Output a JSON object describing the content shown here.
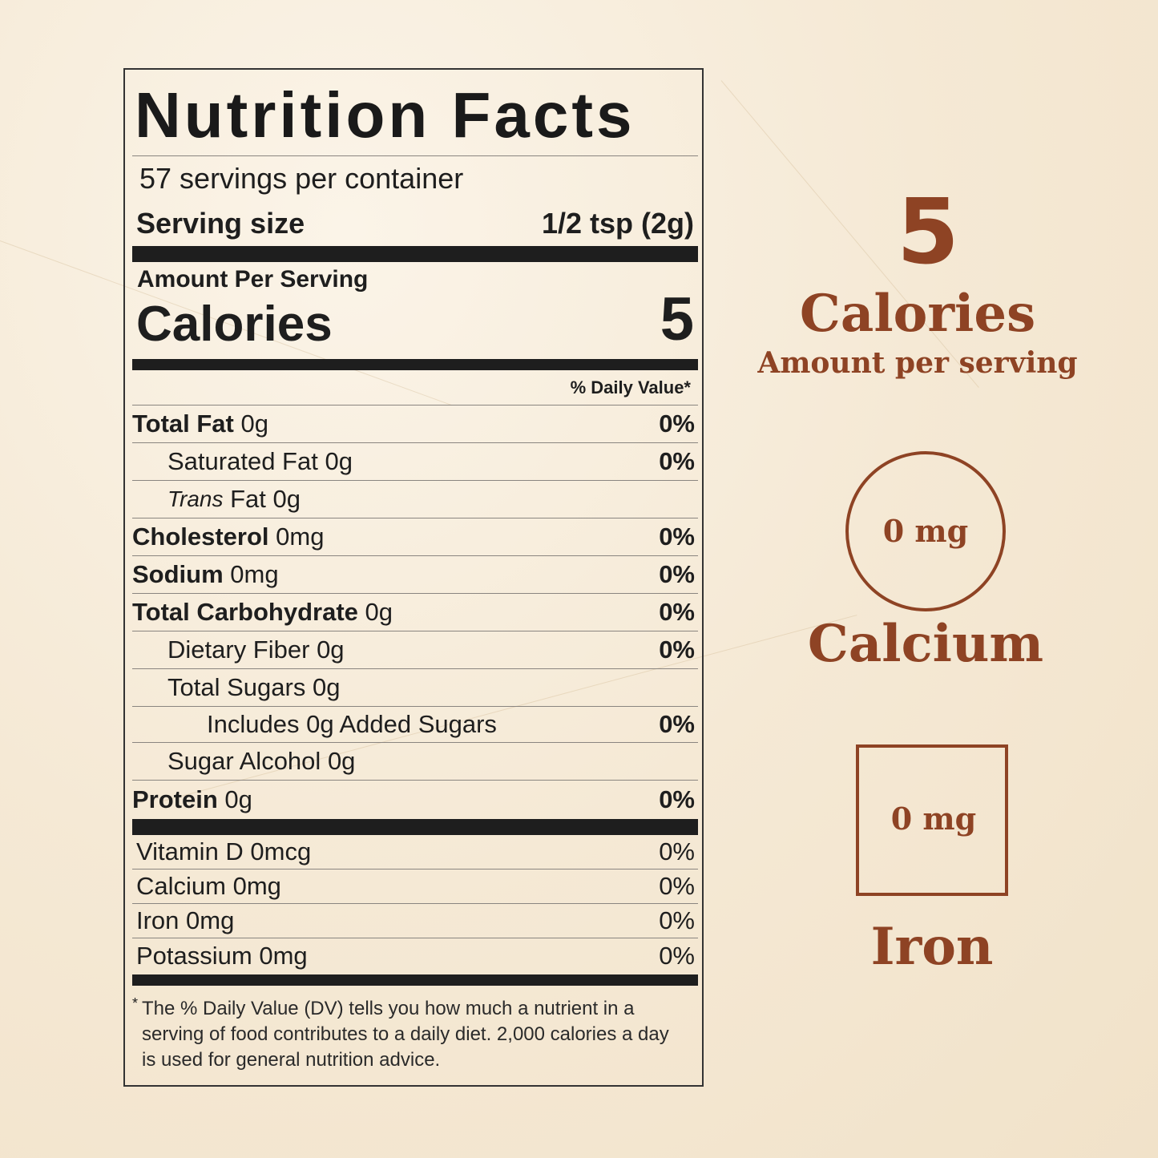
{
  "label": {
    "title": "Nutrition Facts",
    "servings": "57 servings per container",
    "serving_size_label": "Serving size",
    "serving_size_value": "1/2 tsp (2g)",
    "amount_per_serving": "Amount Per Serving",
    "calories_label": "Calories",
    "calories_value": "5",
    "dv_header": "% Daily Value*",
    "nutrients": [
      {
        "name": "Total Fat",
        "amount": "0g",
        "dv": "0%"
      },
      {
        "name": "Saturated Fat",
        "amount": "0g",
        "dv": "0%"
      },
      {
        "name_italic": "Trans",
        "name": "Fat",
        "amount": "0g",
        "dv": ""
      },
      {
        "name": "Cholesterol",
        "amount": "0mg",
        "dv": "0%"
      },
      {
        "name": "Sodium",
        "amount": "0mg",
        "dv": "0%"
      },
      {
        "name": "Total Carbohydrate",
        "amount": "0g",
        "dv": "0%"
      },
      {
        "name": "Dietary Fiber",
        "amount": "0g",
        "dv": "0%"
      },
      {
        "name": "Total Sugars",
        "amount": "0g",
        "dv": ""
      },
      {
        "name": "Includes 0g Added Sugars",
        "amount": "",
        "dv": "0%"
      },
      {
        "name": "Sugar Alcohol",
        "amount": "0g",
        "dv": ""
      },
      {
        "name": "Protein",
        "amount": "0g",
        "dv": "0%"
      }
    ],
    "vitamins": [
      {
        "name": "Vitamin D 0mcg",
        "dv": "0%"
      },
      {
        "name": "Calcium 0mg",
        "dv": "0%"
      },
      {
        "name": "Iron 0mg",
        "dv": "0%"
      },
      {
        "name": "Potassium 0mg",
        "dv": "0%"
      }
    ],
    "footnote_star": "*",
    "footnote": "The % Daily Value (DV) tells you how much a nutrient in a serving of food contributes to a daily diet. 2,000 calories a day is used for general nutrition advice."
  },
  "highlights": {
    "calories_value": "5",
    "calories_label": "Calories",
    "calories_sub": "Amount per serving",
    "calcium_value": "0 mg",
    "calcium_label": "Calcium",
    "iron_value": "0 mg",
    "iron_label": "Iron"
  },
  "colors": {
    "accent": "#8e4324",
    "text": "#1e1e1e",
    "background": "#f5e9d5"
  }
}
